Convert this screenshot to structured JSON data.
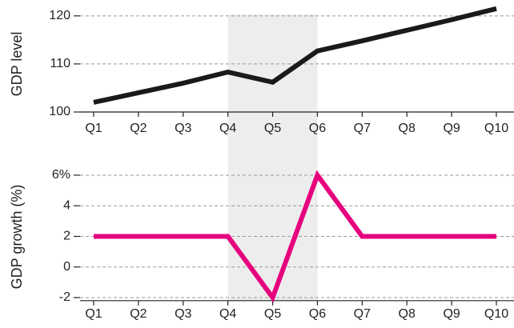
{
  "shaded_categories": [
    "Q4",
    "Q6"
  ],
  "chart_data": [
    {
      "type": "line",
      "y_label": "GDP level",
      "categories": [
        "Q1",
        "Q2",
        "Q3",
        "Q4",
        "Q5",
        "Q6",
        "Q7",
        "Q8",
        "Q9",
        "Q10"
      ],
      "values": [
        102,
        104,
        106,
        108.3,
        106.2,
        112.7,
        114.8,
        117,
        119.2,
        121.5
      ],
      "color": "#1a1a1a",
      "ylim": [
        100,
        123.3
      ],
      "yticks": [
        100,
        110,
        120
      ],
      "grid": true
    },
    {
      "type": "line",
      "y_label": "GDP growth (%)",
      "categories": [
        "Q1",
        "Q2",
        "Q3",
        "Q4",
        "Q5",
        "Q6",
        "Q7",
        "Q8",
        "Q9",
        "Q10"
      ],
      "values": [
        2,
        2,
        2,
        2,
        -2,
        6,
        2,
        2,
        2,
        2
      ],
      "color": "#e6007e",
      "ylim": [
        -2.2,
        6.5
      ],
      "yticks": [
        -2,
        0,
        2,
        4,
        {
          "value": 6,
          "label": "6%"
        }
      ],
      "grid": true
    }
  ]
}
